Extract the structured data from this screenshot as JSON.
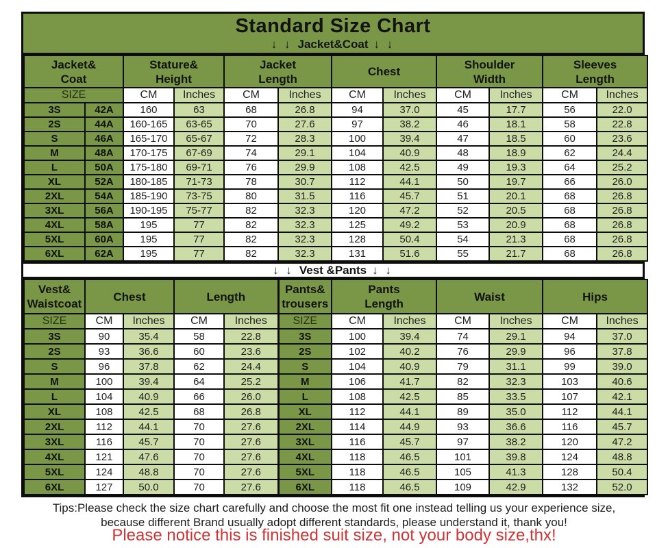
{
  "page": {
    "title": "Standard Size Chart",
    "arrow_glyph": "↓ ↓",
    "section1_label": "Jacket&Coat",
    "section2_label": "Vest &Pants",
    "tips_line1": "Tips:Please check the size chart carefully and choose the most fit one instead telling us your experience size,",
    "tips_line2": "because different Brand usually adopt different standards, please understand it, thank you!",
    "notice": "Please notice this is finished suit size, not your body size,thx!"
  },
  "colors": {
    "olive_header": "#7a9747",
    "light_green_cell": "#cbdca6",
    "white_cell": "#ffffff",
    "border_black": "#0d0d0d",
    "notice_red": "#cf3434"
  },
  "labels": {
    "size": "SIZE",
    "cm": "CM",
    "inches": "Inches"
  },
  "jacket_table": {
    "header_groups": [
      {
        "label": "Jacket&\nCoat"
      },
      {
        "label": "Stature&\nHeight"
      },
      {
        "label": "Jacket\nLength"
      },
      {
        "label": "Chest"
      },
      {
        "label": "Shoulder\nWidth"
      },
      {
        "label": "Sleeves\nLength"
      }
    ],
    "rows": [
      {
        "size": "3S",
        "code": "42A",
        "values": [
          "160",
          "63",
          "68",
          "26.8",
          "94",
          "37.0",
          "45",
          "17.7",
          "56",
          "22.0"
        ]
      },
      {
        "size": "2S",
        "code": "44A",
        "values": [
          "160-165",
          "63-65",
          "70",
          "27.6",
          "97",
          "38.2",
          "46",
          "18.1",
          "58",
          "22.8"
        ]
      },
      {
        "size": "S",
        "code": "46A",
        "values": [
          "165-170",
          "65-67",
          "72",
          "28.3",
          "100",
          "39.4",
          "47",
          "18.5",
          "60",
          "23.6"
        ]
      },
      {
        "size": "M",
        "code": "48A",
        "values": [
          "170-175",
          "67-69",
          "74",
          "29.1",
          "104",
          "40.9",
          "48",
          "18.9",
          "62",
          "24.4"
        ]
      },
      {
        "size": "L",
        "code": "50A",
        "values": [
          "175-180",
          "69-71",
          "76",
          "29.9",
          "108",
          "42.5",
          "49",
          "19.3",
          "64",
          "25.2"
        ]
      },
      {
        "size": "XL",
        "code": "52A",
        "values": [
          "180-185",
          "71-73",
          "78",
          "30.7",
          "112",
          "44.1",
          "50",
          "19.7",
          "66",
          "26.0"
        ]
      },
      {
        "size": "2XL",
        "code": "54A",
        "values": [
          "185-190",
          "73-75",
          "80",
          "31.5",
          "116",
          "45.7",
          "51",
          "20.1",
          "68",
          "26.8"
        ]
      },
      {
        "size": "3XL",
        "code": "56A",
        "values": [
          "190-195",
          "75-77",
          "82",
          "32.3",
          "120",
          "47.2",
          "52",
          "20.5",
          "68",
          "26.8"
        ]
      },
      {
        "size": "4XL",
        "code": "58A",
        "values": [
          "195",
          "77",
          "82",
          "32.3",
          "125",
          "49.2",
          "53",
          "20.9",
          "68",
          "26.8"
        ]
      },
      {
        "size": "5XL",
        "code": "60A",
        "values": [
          "195",
          "77",
          "82",
          "32.3",
          "128",
          "50.4",
          "54",
          "21.3",
          "68",
          "26.8"
        ]
      },
      {
        "size": "6XL",
        "code": "62A",
        "values": [
          "195",
          "77",
          "82",
          "32.3",
          "131",
          "51.6",
          "55",
          "21.7",
          "68",
          "26.8"
        ]
      }
    ]
  },
  "vest_table": {
    "header_groups": [
      {
        "label": "Vest&\nWaistcoat",
        "span": 1
      },
      {
        "label": "Chest",
        "span": 2
      },
      {
        "label": "Length",
        "span": 2
      },
      {
        "label": "Pants&\ntrousers",
        "span": 1
      },
      {
        "label": "Pants\nLength",
        "span": 2
      },
      {
        "label": "Waist",
        "span": 2
      },
      {
        "label": "Hips",
        "span": 2
      }
    ],
    "rows": [
      {
        "size": "3S",
        "vest": [
          "90",
          "35.4",
          "58",
          "22.8"
        ],
        "pants_size": "3S",
        "pants": [
          "100",
          "39.4",
          "74",
          "29.1",
          "94",
          "37.0"
        ]
      },
      {
        "size": "2S",
        "vest": [
          "93",
          "36.6",
          "60",
          "23.6"
        ],
        "pants_size": "2S",
        "pants": [
          "102",
          "40.2",
          "76",
          "29.9",
          "96",
          "37.8"
        ]
      },
      {
        "size": "S",
        "vest": [
          "96",
          "37.8",
          "62",
          "24.4"
        ],
        "pants_size": "S",
        "pants": [
          "104",
          "40.9",
          "79",
          "31.1",
          "99",
          "39.0"
        ]
      },
      {
        "size": "M",
        "vest": [
          "100",
          "39.4",
          "64",
          "25.2"
        ],
        "pants_size": "M",
        "pants": [
          "106",
          "41.7",
          "82",
          "32.3",
          "103",
          "40.6"
        ]
      },
      {
        "size": "L",
        "vest": [
          "104",
          "40.9",
          "66",
          "26.0"
        ],
        "pants_size": "L",
        "pants": [
          "108",
          "42.5",
          "85",
          "33.5",
          "107",
          "42.1"
        ]
      },
      {
        "size": "XL",
        "vest": [
          "108",
          "42.5",
          "68",
          "26.8"
        ],
        "pants_size": "XL",
        "pants": [
          "112",
          "44.1",
          "89",
          "35.0",
          "112",
          "44.1"
        ]
      },
      {
        "size": "2XL",
        "vest": [
          "112",
          "44.1",
          "70",
          "27.6"
        ],
        "pants_size": "2XL",
        "pants": [
          "114",
          "44.9",
          "93",
          "36.6",
          "116",
          "45.7"
        ]
      },
      {
        "size": "3XL",
        "vest": [
          "116",
          "45.7",
          "70",
          "27.6"
        ],
        "pants_size": "3XL",
        "pants": [
          "116",
          "45.7",
          "97",
          "38.2",
          "120",
          "47.2"
        ]
      },
      {
        "size": "4XL",
        "vest": [
          "121",
          "47.6",
          "70",
          "27.6"
        ],
        "pants_size": "4XL",
        "pants": [
          "118",
          "46.5",
          "101",
          "39.8",
          "124",
          "48.8"
        ]
      },
      {
        "size": "5XL",
        "vest": [
          "124",
          "48.8",
          "70",
          "27.6"
        ],
        "pants_size": "5XL",
        "pants": [
          "118",
          "46.5",
          "105",
          "41.3",
          "128",
          "50.4"
        ]
      },
      {
        "size": "6XL",
        "vest": [
          "127",
          "50.0",
          "70",
          "27.6"
        ],
        "pants_size": "6XL",
        "pants": [
          "118",
          "46.5",
          "109",
          "42.9",
          "132",
          "52.0"
        ]
      }
    ]
  }
}
